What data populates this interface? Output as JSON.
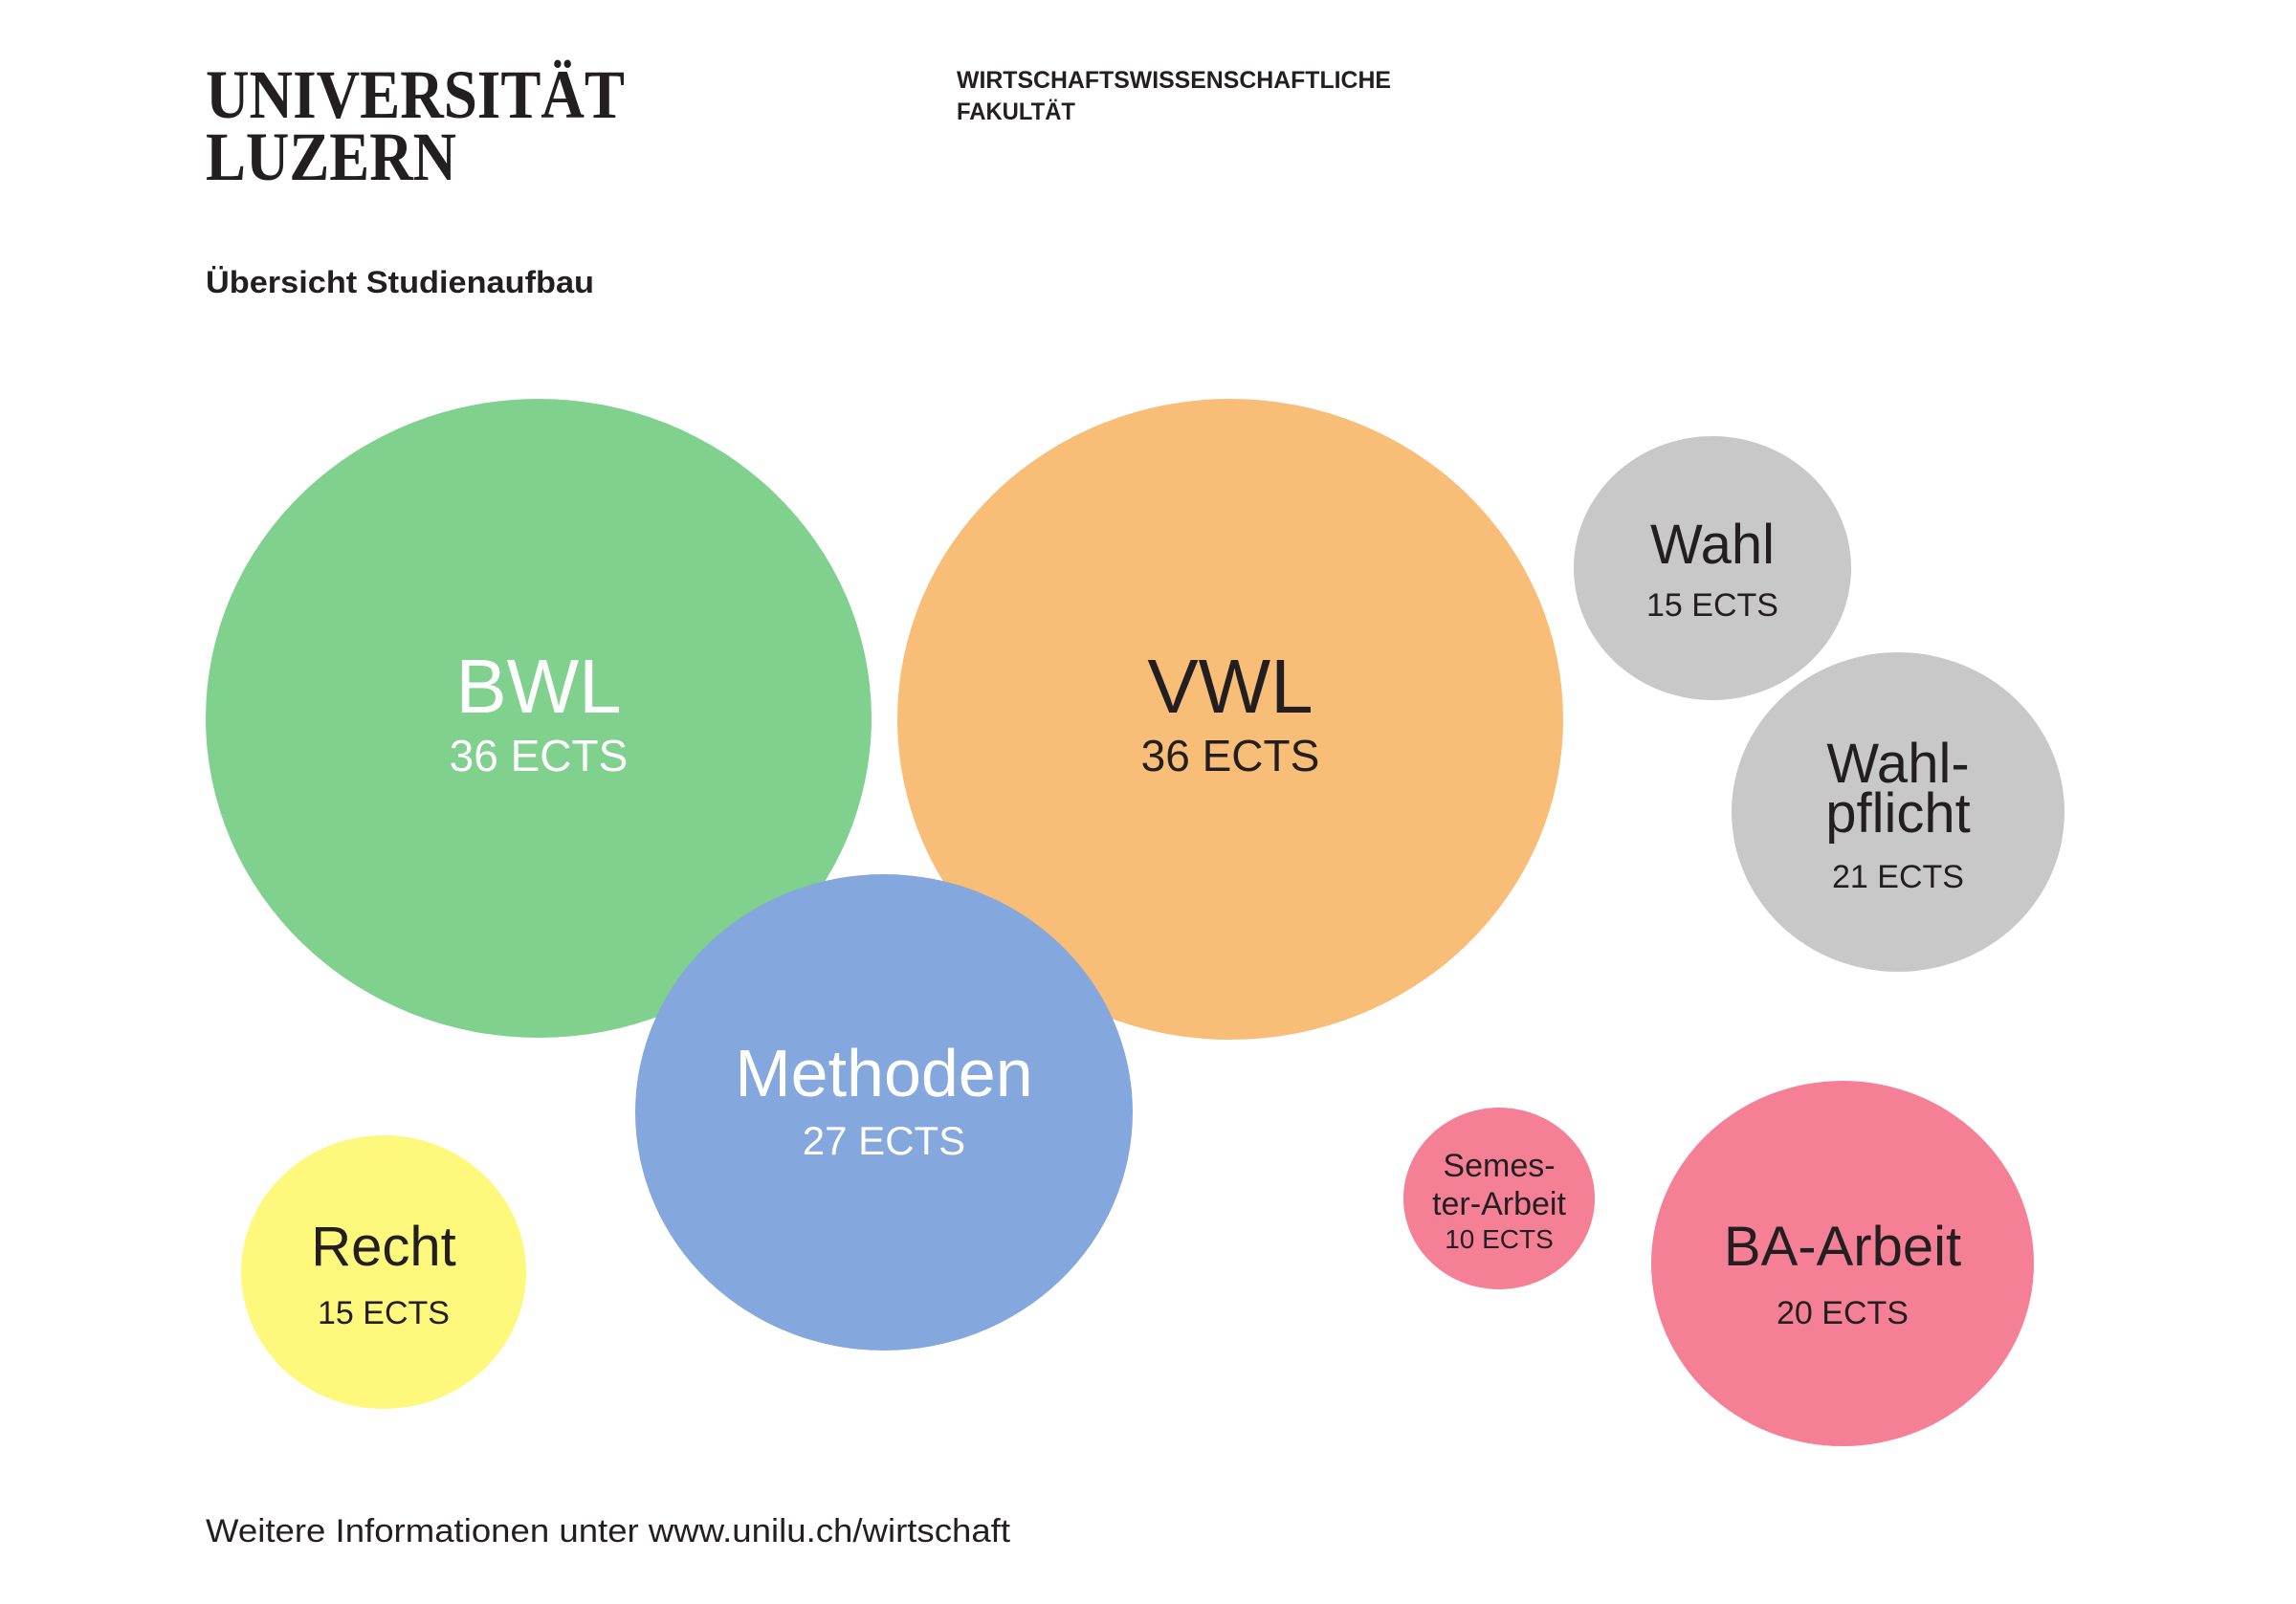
{
  "header": {
    "logo_line1": "UNIVERSITÄT",
    "logo_line2": "LUZERN",
    "faculty_line1": "WIRTSCHAFTSWISSENSCHAFTLICHE",
    "faculty_line2": "FAKULTÄT"
  },
  "title": "Übersicht Studienaufbau",
  "bubbles": [
    {
      "label": "BWL",
      "ects": "36 ECTS",
      "color": "#80d08e"
    },
    {
      "label": "VWL",
      "ects": "36 ECTS",
      "color": "#f8bd76"
    },
    {
      "label": "Methoden",
      "ects": "27 ECTS",
      "color": "#84a7de"
    },
    {
      "label": "Recht",
      "ects": "15 ECTS",
      "color": "#fef87c"
    },
    {
      "label": "Wahl",
      "ects": "15 ECTS",
      "color": "#c8c8c8"
    },
    {
      "label_line1": "Wahl-",
      "label_line2": "pflicht",
      "ects": "21 ECTS",
      "color": "#c8c8c8"
    },
    {
      "label_line1": "Semes-",
      "label_line2": "ter-Arbeit",
      "ects": "10 ECTS",
      "color": "#f58096"
    },
    {
      "label": "BA-Arbeit",
      "ects": "20 ECTS",
      "color": "#f58096"
    }
  ],
  "footer": "Weitere Informationen unter www.unilu.ch/wirtschaft"
}
